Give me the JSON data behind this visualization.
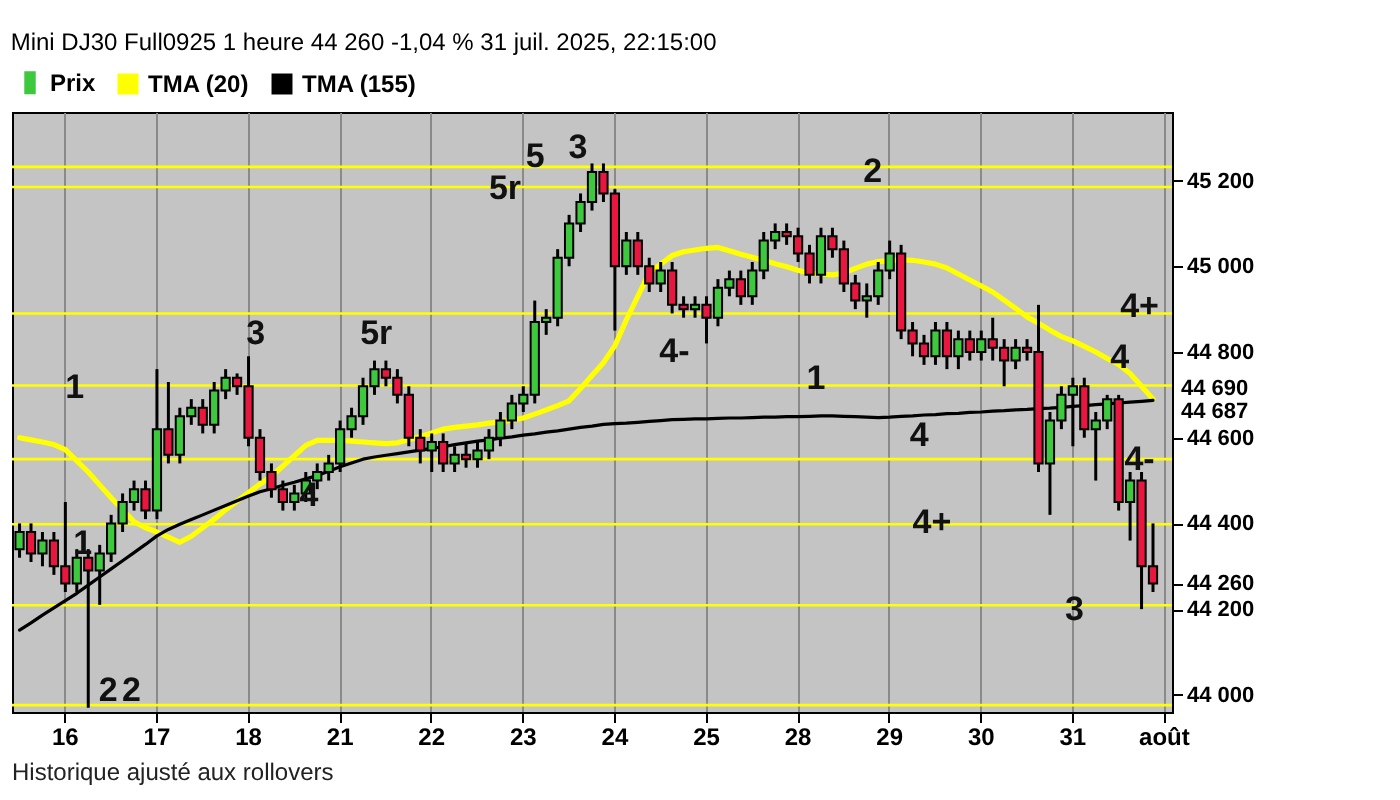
{
  "chart_data": {
    "type": "candlestick",
    "title": "Mini DJ30 Full0925 1 heure 44 260 -1,04 % 31 juil. 2025, 22:15:00",
    "annotations": [
      "Historique ajusté aux rollovers",
      "1",
      "1",
      "2",
      "2",
      "3",
      "4",
      "5r",
      "5",
      "5r",
      "3",
      "4-",
      "1",
      "2",
      "4",
      "4+",
      "4+",
      "4",
      "4-",
      "3"
    ],
    "categories": [
      null,
      null,
      null,
      null,
      "16",
      null,
      null,
      null,
      null,
      null,
      null,
      null,
      "17",
      null,
      null,
      null,
      null,
      null,
      null,
      null,
      "18",
      null,
      null,
      null,
      null,
      null,
      null,
      null,
      "21",
      null,
      null,
      null,
      null,
      null,
      null,
      null,
      "22",
      null,
      null,
      null,
      null,
      null,
      null,
      null,
      "23",
      null,
      null,
      null,
      null,
      null,
      null,
      null,
      "24",
      null,
      null,
      null,
      null,
      null,
      null,
      null,
      "25",
      null,
      null,
      null,
      null,
      null,
      null,
      null,
      "28",
      null,
      null,
      null,
      null,
      null,
      null,
      null,
      "29",
      null,
      null,
      null,
      null,
      null,
      null,
      null,
      "30",
      null,
      null,
      null,
      null,
      null,
      null,
      null,
      "31",
      null,
      null,
      null,
      null,
      null,
      null,
      null,
      "août"
    ],
    "ylim": [
      43960,
      45360
    ],
    "yticks": [
      {
        "value": 44000,
        "label": "44 000"
      },
      {
        "value": 44200,
        "label": "44 200"
      },
      {
        "value": 44260,
        "label": "44 260"
      },
      {
        "value": 44400,
        "label": "44 400"
      },
      {
        "value": 44600,
        "label": "44 600"
      },
      {
        "value": 44800,
        "label": "44 800"
      },
      {
        "value": 45000,
        "label": "45 000"
      },
      {
        "value": 45200,
        "label": "45 200"
      }
    ],
    "grid": "x",
    "legend": "top left",
    "ref_lines": [
      {
        "axis": "y",
        "value": 45232,
        "color": "#ffff00"
      },
      {
        "axis": "y",
        "value": 45185,
        "color": "#ffff00"
      },
      {
        "axis": "y",
        "value": 44890,
        "color": "#ffff00"
      },
      {
        "axis": "y",
        "value": 44722,
        "color": "#ffff00"
      },
      {
        "axis": "y",
        "value": 44550,
        "color": "#ffff00"
      },
      {
        "axis": "y",
        "value": 44398,
        "color": "#ffff00"
      },
      {
        "axis": "y",
        "value": 44209,
        "color": "#ffff00"
      },
      {
        "axis": "y",
        "value": 43976,
        "color": "#ffff00"
      }
    ],
    "series": [
      {
        "name": "Prix",
        "ohlc": [
          [
            44340,
            44400,
            44320,
            44380
          ],
          [
            44380,
            44400,
            44310,
            44330
          ],
          [
            44330,
            44380,
            44300,
            44360
          ],
          [
            44360,
            44380,
            44280,
            44300
          ],
          [
            44300,
            44450,
            44240,
            44260
          ],
          [
            44260,
            44340,
            44240,
            44320
          ],
          [
            44320,
            44340,
            43970,
            44290
          ],
          [
            44290,
            44350,
            44210,
            44330
          ],
          [
            44330,
            44420,
            44310,
            44400
          ],
          [
            44400,
            44470,
            44380,
            44450
          ],
          [
            44450,
            44500,
            44430,
            44480
          ],
          [
            44480,
            44500,
            44410,
            44430
          ],
          [
            44430,
            44760,
            44410,
            44620
          ],
          [
            44620,
            44730,
            44540,
            44560
          ],
          [
            44560,
            44670,
            44540,
            44650
          ],
          [
            44650,
            44690,
            44630,
            44670
          ],
          [
            44670,
            44690,
            44610,
            44630
          ],
          [
            44630,
            44730,
            44610,
            44710
          ],
          [
            44710,
            44760,
            44690,
            44740
          ],
          [
            44740,
            44750,
            44700,
            44720
          ],
          [
            44720,
            44790,
            44580,
            44600
          ],
          [
            44600,
            44620,
            44500,
            44520
          ],
          [
            44520,
            44540,
            44460,
            44480
          ],
          [
            44480,
            44500,
            44430,
            44450
          ],
          [
            44450,
            44490,
            44430,
            44470
          ],
          [
            44470,
            44520,
            44450,
            44500
          ],
          [
            44500,
            44540,
            44480,
            44520
          ],
          [
            44520,
            44560,
            44500,
            44540
          ],
          [
            44540,
            44640,
            44520,
            44620
          ],
          [
            44620,
            44670,
            44600,
            44650
          ],
          [
            44650,
            44740,
            44630,
            44720
          ],
          [
            44720,
            44780,
            44700,
            44760
          ],
          [
            44760,
            44780,
            44720,
            44740
          ],
          [
            44740,
            44760,
            44680,
            44700
          ],
          [
            44700,
            44720,
            44580,
            44600
          ],
          [
            44600,
            44620,
            44540,
            44570
          ],
          [
            44570,
            44610,
            44520,
            44590
          ],
          [
            44590,
            44610,
            44520,
            44540
          ],
          [
            44540,
            44580,
            44520,
            44560
          ],
          [
            44560,
            44590,
            44530,
            44550
          ],
          [
            44550,
            44590,
            44530,
            44570
          ],
          [
            44570,
            44620,
            44550,
            44600
          ],
          [
            44600,
            44660,
            44580,
            44640
          ],
          [
            44640,
            44700,
            44620,
            44680
          ],
          [
            44680,
            44720,
            44660,
            44700
          ],
          [
            44700,
            44920,
            44680,
            44870
          ],
          [
            44870,
            44900,
            44840,
            44880
          ],
          [
            44880,
            45040,
            44860,
            45020
          ],
          [
            45020,
            45120,
            45000,
            45100
          ],
          [
            45100,
            45170,
            45080,
            45150
          ],
          [
            45150,
            45240,
            45130,
            45220
          ],
          [
            45220,
            45240,
            45150,
            45170
          ],
          [
            45170,
            45180,
            44850,
            45000
          ],
          [
            45000,
            45080,
            44980,
            45060
          ],
          [
            45060,
            45080,
            44980,
            45000
          ],
          [
            45000,
            45020,
            44940,
            44960
          ],
          [
            44960,
            45010,
            44940,
            44990
          ],
          [
            44990,
            45010,
            44890,
            44910
          ],
          [
            44910,
            44930,
            44880,
            44900
          ],
          [
            44900,
            44930,
            44880,
            44910
          ],
          [
            44910,
            44930,
            44820,
            44880
          ],
          [
            44880,
            44970,
            44860,
            44950
          ],
          [
            44950,
            44990,
            44930,
            44970
          ],
          [
            44970,
            44990,
            44910,
            44930
          ],
          [
            44930,
            45010,
            44910,
            44990
          ],
          [
            44990,
            45080,
            44970,
            45060
          ],
          [
            45060,
            45100,
            45040,
            45080
          ],
          [
            45080,
            45100,
            45050,
            45070
          ],
          [
            45070,
            45090,
            45010,
            45030
          ],
          [
            45030,
            45050,
            44960,
            44980
          ],
          [
            44980,
            45090,
            44960,
            45070
          ],
          [
            45070,
            45090,
            45020,
            45040
          ],
          [
            45040,
            45060,
            44940,
            44960
          ],
          [
            44960,
            44980,
            44900,
            44920
          ],
          [
            44920,
            44960,
            44880,
            44930
          ],
          [
            44930,
            45010,
            44910,
            44990
          ],
          [
            44990,
            45060,
            44970,
            45030
          ],
          [
            45030,
            45050,
            44830,
            44850
          ],
          [
            44850,
            44870,
            44790,
            44820
          ],
          [
            44820,
            44840,
            44770,
            44790
          ],
          [
            44790,
            44870,
            44770,
            44850
          ],
          [
            44850,
            44870,
            44760,
            44790
          ],
          [
            44790,
            44850,
            44760,
            44830
          ],
          [
            44830,
            44850,
            44780,
            44800
          ],
          [
            44800,
            44850,
            44780,
            44830
          ],
          [
            44830,
            44880,
            44780,
            44810
          ],
          [
            44810,
            44830,
            44720,
            44780
          ],
          [
            44780,
            44830,
            44760,
            44810
          ],
          [
            44810,
            44830,
            44780,
            44800
          ],
          [
            44800,
            44910,
            44520,
            44540
          ],
          [
            44540,
            44660,
            44420,
            44640
          ],
          [
            44640,
            44720,
            44620,
            44700
          ],
          [
            44700,
            44740,
            44580,
            44720
          ],
          [
            44720,
            44740,
            44600,
            44620
          ],
          [
            44620,
            44660,
            44500,
            44640
          ],
          [
            44640,
            44700,
            44620,
            44690
          ],
          [
            44690,
            44700,
            44430,
            44450
          ],
          [
            44450,
            44520,
            44360,
            44500
          ],
          [
            44500,
            44520,
            44200,
            44300
          ],
          [
            44300,
            44400,
            44240,
            44260
          ],
          null
        ],
        "colors": [
          "#3ec83e",
          "#e8173f",
          "#3ec83e",
          "#e8173f",
          "#e8173f",
          "#3ec83e",
          "#e8173f",
          "#3ec83e",
          "#3ec83e",
          "#3ec83e",
          "#3ec83e",
          "#e8173f",
          "#3ec83e",
          "#e8173f",
          "#3ec83e",
          "#3ec83e",
          "#e8173f",
          "#3ec83e",
          "#3ec83e",
          "#e8173f",
          "#e8173f",
          "#e8173f",
          "#e8173f",
          "#e8173f",
          "#3ec83e",
          "#3ec83e",
          "#3ec83e",
          "#3ec83e",
          "#3ec83e",
          "#3ec83e",
          "#3ec83e",
          "#3ec83e",
          "#e8173f",
          "#e8173f",
          "#e8173f",
          "#e8173f",
          "#3ec83e",
          "#e8173f",
          "#3ec83e",
          "#e8173f",
          "#3ec83e",
          "#3ec83e",
          "#3ec83e",
          "#3ec83e",
          "#3ec83e",
          "#3ec83e",
          "#3ec83e",
          "#3ec83e",
          "#3ec83e",
          "#3ec83e",
          "#3ec83e",
          "#e8173f",
          "#e8173f",
          "#3ec83e",
          "#e8173f",
          "#e8173f",
          "#3ec83e",
          "#e8173f",
          "#e8173f",
          "#3ec83e",
          "#e8173f",
          "#3ec83e",
          "#3ec83e",
          "#e8173f",
          "#3ec83e",
          "#3ec83e",
          "#3ec83e",
          "#e8173f",
          "#e8173f",
          "#e8173f",
          "#3ec83e",
          "#e8173f",
          "#e8173f",
          "#e8173f",
          "#3ec83e",
          "#3ec83e",
          "#3ec83e",
          "#e8173f",
          "#e8173f",
          "#e8173f",
          "#3ec83e",
          "#e8173f",
          "#3ec83e",
          "#e8173f",
          "#3ec83e",
          "#e8173f",
          "#e8173f",
          "#3ec83e",
          "#e8173f",
          "#e8173f",
          "#3ec83e",
          "#3ec83e",
          "#3ec83e",
          "#e8173f",
          "#3ec83e",
          "#3ec83e",
          "#e8173f",
          "#3ec83e",
          "#e8173f",
          "#e8173f",
          null
        ]
      },
      {
        "name": "TMA (20)",
        "type": "line",
        "color": "#ffff00",
        "values": [
          44600,
          44595,
          44590,
          44584,
          44572,
          44546,
          44520,
          44490,
          44460,
          44432,
          44404,
          44390,
          44380,
          44368,
          44356,
          44370,
          44390,
          44410,
          44432,
          44452,
          44472,
          44492,
          44510,
          44534,
          44558,
          44582,
          44594,
          44594,
          44594,
          44592,
          44590,
          44588,
          44586,
          44588,
          44595,
          44603,
          44611,
          44620,
          44624,
          44627,
          44630,
          44634,
          44637,
          44641,
          44646,
          44655,
          44665,
          44675,
          44686,
          44715,
          44745,
          44775,
          44815,
          44875,
          44930,
          44985,
          45005,
          45025,
          45034,
          45038,
          45042,
          45044,
          45036,
          45028,
          45021,
          45014,
          45006,
          44999,
          44991,
          44984,
          44982,
          44980,
          44984,
          44995,
          45005,
          45011,
          45013,
          45015,
          45014,
          45010,
          45005,
          44996,
          44982,
          44968,
          44954,
          44940,
          44921,
          44902,
          44882,
          44867,
          44851,
          44836,
          44826,
          44813,
          44800,
          44785,
          44771,
          44750,
          44720,
          44690,
          null
        ],
        "value_labels": [
          null,
          null,
          null,
          null,
          null,
          null,
          null,
          null,
          null,
          null,
          null,
          null,
          null,
          null,
          null,
          null,
          null,
          null,
          null,
          null,
          null,
          null,
          null,
          null,
          null,
          null,
          null,
          null,
          null,
          null,
          null,
          null,
          null,
          null,
          null,
          null,
          null,
          null,
          null,
          null,
          null,
          null,
          null,
          null,
          null,
          null,
          null,
          null,
          null,
          null,
          null,
          null,
          null,
          null,
          null,
          null,
          null,
          null,
          null,
          null,
          null,
          null,
          null,
          null,
          null,
          null,
          null,
          null,
          null,
          null,
          null,
          null,
          null,
          null,
          null,
          null,
          null,
          null,
          null,
          null,
          null,
          null,
          null,
          null,
          null,
          null,
          null,
          null,
          null,
          null,
          null,
          null,
          null,
          null,
          null,
          null,
          null,
          null,
          null,
          "44 690",
          null
        ]
      },
      {
        "name": "TMA (155)",
        "type": "line",
        "color": "#000000",
        "values": [
          44151,
          44168,
          44186,
          44203,
          44220,
          44237,
          44256,
          44275,
          44294,
          44313,
          44332,
          44351,
          44371,
          44386,
          44398,
          44409,
          44420,
          44431,
          44442,
          44453,
          44464,
          44474,
          44481,
          44489,
          44496,
          44504,
          44512,
          44522,
          44532,
          44541,
          44550,
          44555,
          44559,
          44563,
          44567,
          44571,
          44575,
          44579,
          44584,
          44588,
          44592,
          44595,
          44599,
          44602,
          44606,
          44609,
          44613,
          44616,
          44620,
          44624,
          44627,
          44631,
          44633,
          44634,
          44636,
          44638,
          44640,
          44642,
          44643,
          44644,
          44644,
          44645,
          44646,
          44646,
          44647,
          44648,
          44648,
          44649,
          44649,
          44650,
          44651,
          44651,
          44650,
          44649,
          44648,
          44647,
          44648,
          44650,
          44651,
          44653,
          44654,
          44656,
          44657,
          44659,
          44660,
          44662,
          44663,
          44665,
          44666,
          44668,
          44669,
          44671,
          44673,
          44675,
          44677,
          44679,
          44681,
          44683,
          44685,
          44687,
          null
        ],
        "value_labels": [
          null,
          null,
          null,
          null,
          null,
          null,
          null,
          null,
          null,
          null,
          null,
          null,
          null,
          null,
          null,
          null,
          null,
          null,
          null,
          null,
          null,
          null,
          null,
          null,
          null,
          null,
          null,
          null,
          null,
          null,
          null,
          null,
          null,
          null,
          null,
          null,
          null,
          null,
          null,
          null,
          null,
          null,
          null,
          null,
          null,
          null,
          null,
          null,
          null,
          null,
          null,
          null,
          null,
          null,
          null,
          null,
          null,
          null,
          null,
          null,
          null,
          null,
          null,
          null,
          null,
          null,
          null,
          null,
          null,
          null,
          null,
          null,
          null,
          null,
          null,
          null,
          null,
          null,
          null,
          null,
          null,
          null,
          null,
          null,
          null,
          null,
          null,
          null,
          null,
          null,
          null,
          null,
          null,
          null,
          null,
          null,
          null,
          null,
          null,
          "44 687",
          null
        ]
      }
    ]
  }
}
